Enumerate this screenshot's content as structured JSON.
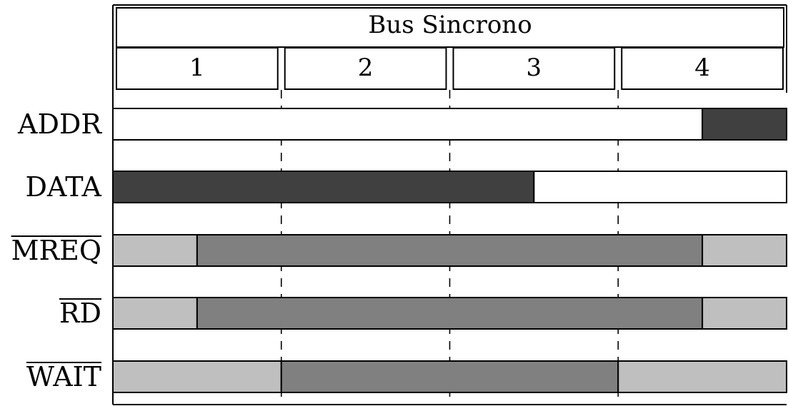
{
  "diagram": {
    "title": "Bus Sincrono",
    "cycles": [
      "1",
      "2",
      "3",
      "4"
    ],
    "colors": {
      "dark": "#404040",
      "mid": "#808080",
      "light": "#bfbfbf",
      "white": "#ffffff"
    },
    "signals": [
      {
        "label": "ADDR",
        "active_low": false,
        "segments": [
          {
            "from": 0,
            "to": 3.5,
            "shade": "white"
          },
          {
            "from": 3.5,
            "to": 4,
            "shade": "dark"
          }
        ]
      },
      {
        "label": "DATA",
        "active_low": false,
        "segments": [
          {
            "from": 0,
            "to": 2.5,
            "shade": "dark"
          },
          {
            "from": 2.5,
            "to": 4,
            "shade": "white"
          }
        ]
      },
      {
        "label": "MREQ",
        "active_low": true,
        "segments": [
          {
            "from": 0,
            "to": 0.5,
            "shade": "light"
          },
          {
            "from": 0.5,
            "to": 3.5,
            "shade": "mid"
          },
          {
            "from": 3.5,
            "to": 4,
            "shade": "light"
          }
        ]
      },
      {
        "label": "RD",
        "active_low": true,
        "segments": [
          {
            "from": 0,
            "to": 0.5,
            "shade": "light"
          },
          {
            "from": 0.5,
            "to": 3.5,
            "shade": "mid"
          },
          {
            "from": 3.5,
            "to": 4,
            "shade": "light"
          }
        ]
      },
      {
        "label": "WAIT",
        "active_low": true,
        "segments": [
          {
            "from": 0,
            "to": 1,
            "shade": "light"
          },
          {
            "from": 1,
            "to": 3,
            "shade": "mid"
          },
          {
            "from": 3,
            "to": 4,
            "shade": "light"
          }
        ]
      }
    ]
  }
}
